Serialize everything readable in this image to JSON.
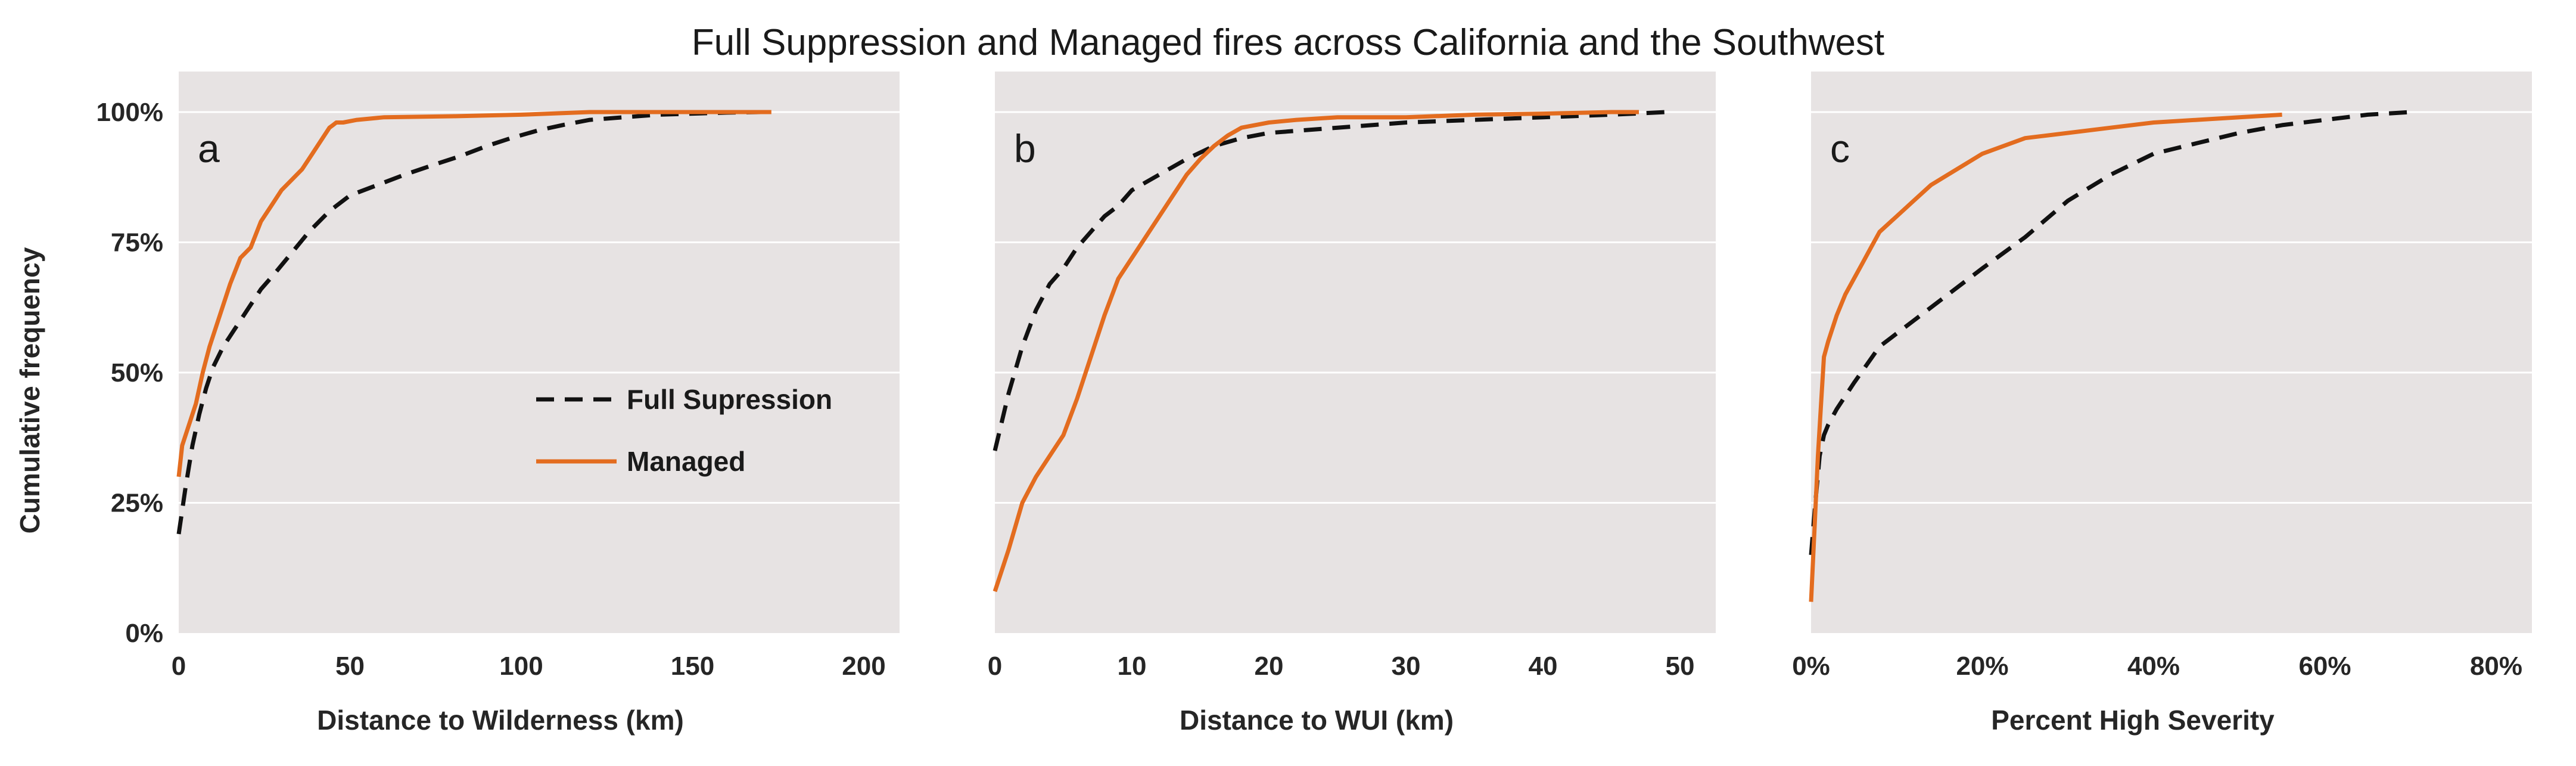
{
  "chart_data": {
    "title": "Full Suppression and Managed fires across California and the Southwest",
    "ylabel": "Cumulative frequency",
    "legend": {
      "placement": "inside panel a, center-right",
      "entries": [
        {
          "name": "Full Supression",
          "color": "#111111",
          "style": "dashed"
        },
        {
          "name": "Managed",
          "color": "#e36c1f",
          "style": "solid"
        }
      ]
    },
    "colors": {
      "full_suppression": "#111111",
      "managed": "#e36c1f",
      "plot_background": "#e7e3e3",
      "grid": "#ffffff"
    },
    "panels": [
      {
        "type": "line",
        "letter": "a",
        "xlabel": "Distance to Wilderness (km)",
        "xlim": [
          0,
          200
        ],
        "ylim": [
          0,
          1
        ],
        "grid": "horizontal",
        "x_ticks": [
          0,
          50,
          100,
          150,
          200
        ],
        "x_tick_labels": [
          "0",
          "50",
          "100",
          "150",
          "200"
        ],
        "y_ticks": [
          0,
          0.25,
          0.5,
          0.75,
          1.0
        ],
        "y_tick_labels": [
          "0%",
          "25%",
          "50%",
          "75%",
          "100%"
        ],
        "series": [
          {
            "name": "Full Supression",
            "x": [
              0,
              2,
              4,
              6,
              8,
              10,
              13,
              16,
              20,
              24,
              28,
              33,
              38,
              44,
              50,
              58,
              66,
              75,
              82,
              90,
              97,
              105,
              112,
              120,
              130,
              140,
              150,
              160,
              170
            ],
            "y": [
              0.19,
              0.28,
              0.36,
              0.42,
              0.47,
              0.51,
              0.55,
              0.58,
              0.62,
              0.66,
              0.69,
              0.73,
              0.77,
              0.81,
              0.84,
              0.86,
              0.88,
              0.9,
              0.915,
              0.935,
              0.95,
              0.965,
              0.975,
              0.985,
              0.99,
              0.995,
              0.997,
              0.999,
              1.0
            ]
          },
          {
            "name": "Managed",
            "x": [
              0,
              1,
              3,
              5,
              7,
              9,
              11,
              13,
              15,
              18,
              21,
              24,
              27,
              30,
              33,
              36,
              39,
              42,
              44,
              45,
              46,
              48,
              52,
              60,
              80,
              100,
              120,
              150,
              173
            ],
            "y": [
              0.3,
              0.36,
              0.4,
              0.44,
              0.5,
              0.55,
              0.59,
              0.63,
              0.67,
              0.72,
              0.74,
              0.79,
              0.82,
              0.85,
              0.87,
              0.89,
              0.92,
              0.95,
              0.97,
              0.975,
              0.98,
              0.98,
              0.985,
              0.99,
              0.992,
              0.995,
              1.0,
              1.0,
              1.0
            ]
          }
        ]
      },
      {
        "type": "line",
        "letter": "b",
        "xlabel": "Distance to WUI (km)",
        "xlim": [
          0,
          50
        ],
        "ylim": [
          0,
          1
        ],
        "grid": "horizontal",
        "x_ticks": [
          0,
          10,
          20,
          30,
          40,
          50
        ],
        "x_tick_labels": [
          "0",
          "10",
          "20",
          "30",
          "40",
          "50"
        ],
        "y_ticks": [
          0,
          0.25,
          0.5,
          0.75,
          1.0
        ],
        "series": [
          {
            "name": "Full Supression",
            "x": [
              0,
              1,
              2,
              3,
              4,
              5,
              6,
              7,
              8,
              9,
              10,
              12,
              14,
              16,
              18,
              20,
              25,
              30,
              35,
              40,
              45,
              49
            ],
            "y": [
              0.35,
              0.46,
              0.55,
              0.62,
              0.67,
              0.7,
              0.74,
              0.77,
              0.8,
              0.82,
              0.85,
              0.88,
              0.91,
              0.935,
              0.95,
              0.96,
              0.97,
              0.98,
              0.985,
              0.99,
              0.995,
              1.0
            ]
          },
          {
            "name": "Managed",
            "x": [
              0,
              1,
              2,
              3,
              4,
              5,
              6,
              7,
              8,
              9,
              10,
              11,
              12,
              13,
              14,
              15,
              16,
              17,
              18,
              20,
              22,
              25,
              30,
              35,
              40,
              45,
              47
            ],
            "y": [
              0.08,
              0.16,
              0.25,
              0.3,
              0.34,
              0.38,
              0.45,
              0.53,
              0.61,
              0.68,
              0.72,
              0.76,
              0.8,
              0.84,
              0.88,
              0.91,
              0.935,
              0.955,
              0.97,
              0.98,
              0.985,
              0.99,
              0.99,
              0.995,
              0.997,
              1.0,
              1.0
            ]
          }
        ]
      },
      {
        "type": "line",
        "letter": "c",
        "xlabel": "Percent High Severity",
        "xlim": [
          0,
          0.8
        ],
        "ylim": [
          0,
          1
        ],
        "grid": "horizontal",
        "x_ticks": [
          0,
          0.2,
          0.4,
          0.6,
          0.8
        ],
        "x_tick_labels": [
          "0%",
          "20%",
          "40%",
          "60%",
          "80%"
        ],
        "y_ticks": [
          0,
          0.25,
          0.5,
          0.75,
          1.0
        ],
        "series": [
          {
            "name": "Full Supression",
            "x": [
              0.0,
              0.005,
              0.01,
              0.015,
              0.02,
              0.03,
              0.05,
              0.08,
              0.12,
              0.16,
              0.2,
              0.25,
              0.3,
              0.35,
              0.4,
              0.45,
              0.5,
              0.55,
              0.6,
              0.65,
              0.7
            ],
            "y": [
              0.15,
              0.25,
              0.34,
              0.38,
              0.4,
              0.43,
              0.48,
              0.55,
              0.6,
              0.65,
              0.7,
              0.76,
              0.83,
              0.88,
              0.92,
              0.94,
              0.96,
              0.975,
              0.985,
              0.995,
              1.0
            ]
          },
          {
            "name": "Managed",
            "x": [
              0.0,
              0.004,
              0.008,
              0.012,
              0.015,
              0.02,
              0.03,
              0.04,
              0.05,
              0.06,
              0.07,
              0.08,
              0.1,
              0.12,
              0.14,
              0.16,
              0.18,
              0.2,
              0.25,
              0.3,
              0.35,
              0.4,
              0.45,
              0.5,
              0.55
            ],
            "y": [
              0.06,
              0.2,
              0.34,
              0.45,
              0.53,
              0.56,
              0.61,
              0.65,
              0.68,
              0.71,
              0.74,
              0.77,
              0.8,
              0.83,
              0.86,
              0.88,
              0.9,
              0.92,
              0.95,
              0.96,
              0.97,
              0.98,
              0.985,
              0.99,
              0.995
            ]
          }
        ]
      }
    ]
  }
}
